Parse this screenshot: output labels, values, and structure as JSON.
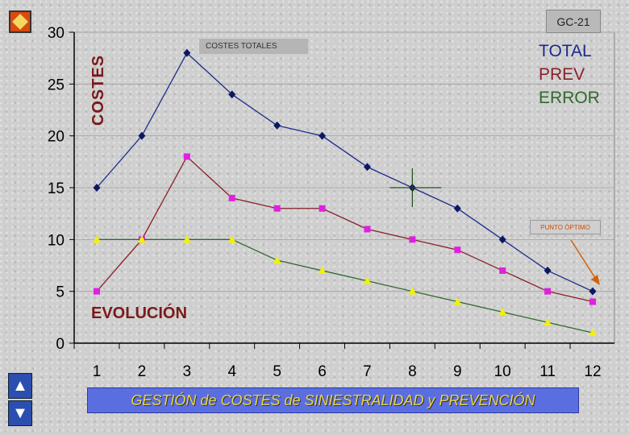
{
  "chart_data": {
    "type": "line",
    "categories": [
      "1",
      "2",
      "3",
      "4",
      "5",
      "6",
      "7",
      "8",
      "9",
      "10",
      "11",
      "12"
    ],
    "series": [
      {
        "name": "TOTAL",
        "color": "#1b2a8a",
        "marker": "diamond",
        "marker_color": "#0c1860",
        "values": [
          15,
          20,
          28,
          24,
          21,
          20,
          17,
          15,
          13,
          10,
          7,
          5
        ]
      },
      {
        "name": "PREV",
        "color": "#8b1f2a",
        "marker": "square",
        "marker_color": "#e020e0",
        "values": [
          5,
          10,
          18,
          14,
          13,
          13,
          11,
          10,
          9,
          7,
          5,
          4
        ]
      },
      {
        "name": "ERROR",
        "color": "#2f6a2a",
        "marker": "triangle",
        "marker_color": "#f2f200",
        "values": [
          10,
          10,
          10,
          10,
          8,
          7,
          6,
          5,
          4,
          3,
          2,
          1
        ]
      }
    ],
    "ylim": [
      0,
      30
    ],
    "yticks": [
      "0",
      "5",
      "10",
      "15",
      "20",
      "25",
      "30"
    ],
    "ylabel": "COSTES",
    "grid": true,
    "legend": [
      "TOTAL",
      "PREV",
      "ERROR"
    ],
    "legend_colors": [
      "#1b2a8a",
      "#8b1f2a",
      "#2f6a2a"
    ],
    "optimum_marker": {
      "category": "8",
      "value": 15
    }
  },
  "labels": {
    "badge": "GC-21",
    "costes_totales": "COSTES TOTALES",
    "punto_optimo": "PUNTO ÓPTIMO",
    "evolucion": "EVOLUCIÓN",
    "costes": "COSTES",
    "footer": "GESTIÓN de COSTES de SINIESTRALIDAD y PREVENCIÓN"
  },
  "icons": {
    "back": "back-arrow-icon",
    "up": "up-arrow-icon",
    "down": "down-arrow-icon"
  }
}
